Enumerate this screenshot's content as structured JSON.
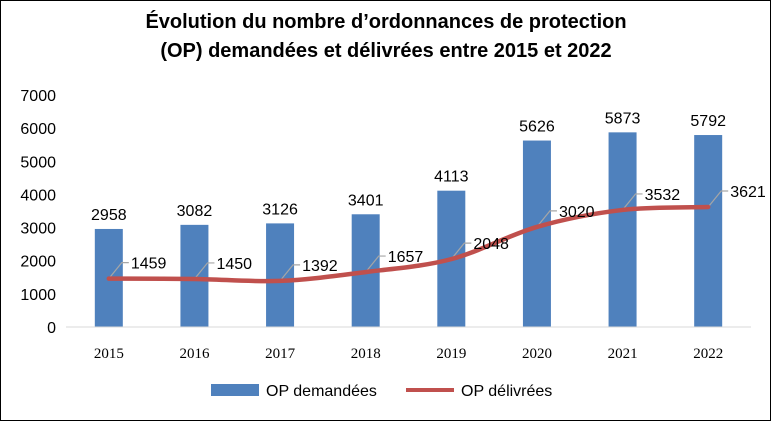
{
  "chart_data": {
    "type": "bar",
    "title_lines": [
      "Évolution du nombre d’ordonnances de protection",
      "(OP) demandées et délivrées entre 2015 et 2022"
    ],
    "categories": [
      "2015",
      "2016",
      "2017",
      "2018",
      "2019",
      "2020",
      "2021",
      "2022"
    ],
    "series": [
      {
        "name": "OP demandées",
        "kind": "bar",
        "color": "#4F81BD",
        "values": [
          2958,
          3082,
          3126,
          3401,
          4113,
          5626,
          5873,
          5792
        ]
      },
      {
        "name": "OP délivrées",
        "kind": "line",
        "color": "#C0504D",
        "values": [
          1459,
          1450,
          1392,
          1657,
          2048,
          3020,
          3532,
          3621
        ]
      }
    ],
    "ylim": [
      0,
      7000
    ],
    "yticks": [
      0,
      1000,
      2000,
      3000,
      4000,
      5000,
      6000,
      7000
    ],
    "grid": false,
    "legend": "bottom",
    "xlabel": "",
    "ylabel": ""
  }
}
